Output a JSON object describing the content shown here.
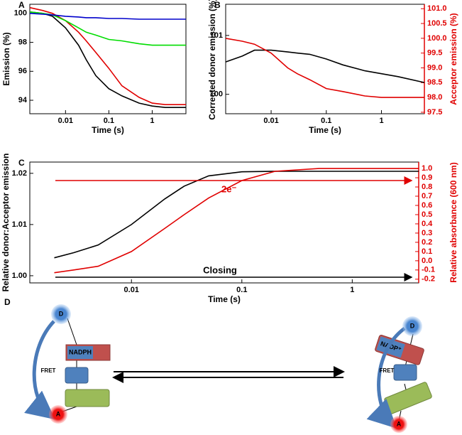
{
  "chart_data": [
    {
      "type": "line",
      "panel_label": "A",
      "xlabel": "Time (s)",
      "ylabel": "Emission (%)",
      "log_x": true,
      "x": [
        0.0015,
        0.003,
        0.005,
        0.01,
        0.02,
        0.03,
        0.05,
        0.1,
        0.2,
        0.5,
        1,
        2,
        6
      ],
      "xlim": [
        0.0015,
        6
      ],
      "xticks": [
        0.01,
        0.1,
        1
      ],
      "ylim": [
        93.07,
        100.63
      ],
      "yticks": [
        94,
        96,
        98,
        100
      ],
      "series": [
        {
          "color": "#000000",
          "values": [
            100.1,
            100.0,
            99.8,
            99.0,
            97.8,
            96.8,
            95.7,
            94.8,
            94.3,
            93.8,
            93.6,
            93.5,
            93.5
          ]
        },
        {
          "color": "#e00000",
          "values": [
            100.4,
            100.2,
            100.0,
            99.5,
            98.7,
            98.1,
            97.3,
            96.2,
            95.0,
            94.2,
            93.8,
            93.7,
            93.7
          ]
        },
        {
          "color": "#00dd00",
          "values": [
            100.1,
            100.0,
            99.9,
            99.5,
            99.0,
            98.7,
            98.5,
            98.2,
            98.1,
            97.9,
            97.8,
            97.8,
            97.8
          ]
        },
        {
          "color": "#0000cc",
          "values": [
            100.0,
            99.95,
            99.9,
            99.8,
            99.75,
            99.7,
            99.7,
            99.65,
            99.65,
            99.6,
            99.6,
            99.6,
            99.6
          ]
        }
      ]
    },
    {
      "type": "line",
      "panel_label": "B",
      "xlabel": "Time (s)",
      "ylabel": "Corrected donor emission (%)",
      "y2label": "Acceptor emission (%)",
      "y2color": "#e00000",
      "log_x": true,
      "x": [
        0.0015,
        0.003,
        0.005,
        0.01,
        0.02,
        0.03,
        0.05,
        0.1,
        0.2,
        0.5,
        1,
        2,
        6
      ],
      "xlim": [
        0.0015,
        6
      ],
      "xticks": [
        0.01,
        0.1,
        1
      ],
      "ylim": [
        99.67,
        101.53
      ],
      "yticks": [
        100,
        101
      ],
      "y2lim": [
        97.45,
        101.15
      ],
      "y2ticks": [
        {
          "value": 101,
          "label": "101.0"
        },
        100.5,
        {
          "value": 100,
          "label": "100.0"
        },
        99.5,
        {
          "value": 99,
          "label": "99.0"
        },
        98.5,
        {
          "value": 98,
          "label": "98.0"
        },
        97.5
      ],
      "series": [
        {
          "color": "#000000",
          "values": [
            100.55,
            100.65,
            100.75,
            100.75,
            100.72,
            100.7,
            100.68,
            100.6,
            100.5,
            100.4,
            100.35,
            100.3,
            100.2
          ]
        },
        {
          "color": "#e00000",
          "axis": "y2",
          "values": [
            100.0,
            99.9,
            99.8,
            99.5,
            99.0,
            98.8,
            98.6,
            98.3,
            98.2,
            98.05,
            98.0,
            98.0,
            98.0
          ]
        }
      ]
    },
    {
      "type": "line",
      "panel_label": "C",
      "xlabel": "Time (s)",
      "ylabel": "Relative donor:Acceptor emission",
      "y2label": "Relative absorbance (600 nm)",
      "y2color": "#e00000",
      "log_x": true,
      "x": [
        0.002,
        0.003,
        0.005,
        0.01,
        0.02,
        0.03,
        0.05,
        0.1,
        0.2,
        0.5,
        1,
        2,
        4
      ],
      "xlim": [
        0.0012,
        4
      ],
      "xticks": [
        0.01,
        0.1,
        1
      ],
      "ylim": [
        0.9986,
        1.0222
      ],
      "yticks": [
        {
          "value": 1,
          "label": "1.00"
        },
        1.01,
        {
          "value": 1.02,
          "label": "1.02"
        }
      ],
      "y2lim": [
        -0.24,
        1.07
      ],
      "y2ticks": [
        -0.2,
        -0.1,
        {
          "value": 0,
          "label": "0.0"
        },
        0.1,
        0.2,
        0.3,
        0.4,
        0.5,
        0.6,
        0.7,
        0.8,
        0.9,
        {
          "value": 1,
          "label": "1.0"
        }
      ],
      "annotations": [
        "2e⁻",
        "Closing"
      ],
      "series": [
        {
          "color": "#000000",
          "values": [
            1.0035,
            1.0045,
            1.006,
            1.01,
            1.015,
            1.0175,
            1.0195,
            1.0203,
            1.0204,
            1.0204,
            1.0204,
            1.0204,
            1.0204
          ]
        },
        {
          "color": "#e00000",
          "axis": "y2",
          "values": [
            -0.13,
            -0.1,
            -0.06,
            0.1,
            0.35,
            0.5,
            0.68,
            0.87,
            0.97,
            1.0,
            1.0,
            1.0,
            1.0
          ]
        }
      ]
    }
  ],
  "diagram": {
    "panel_label": "D",
    "left": {
      "donor": "D",
      "cofactor": "NADPH",
      "fret": "FRET",
      "acceptor": "A"
    },
    "right": {
      "donor": "D",
      "cofactor": "NADP⁺",
      "fret": "FRET",
      "acceptor": "A"
    }
  }
}
